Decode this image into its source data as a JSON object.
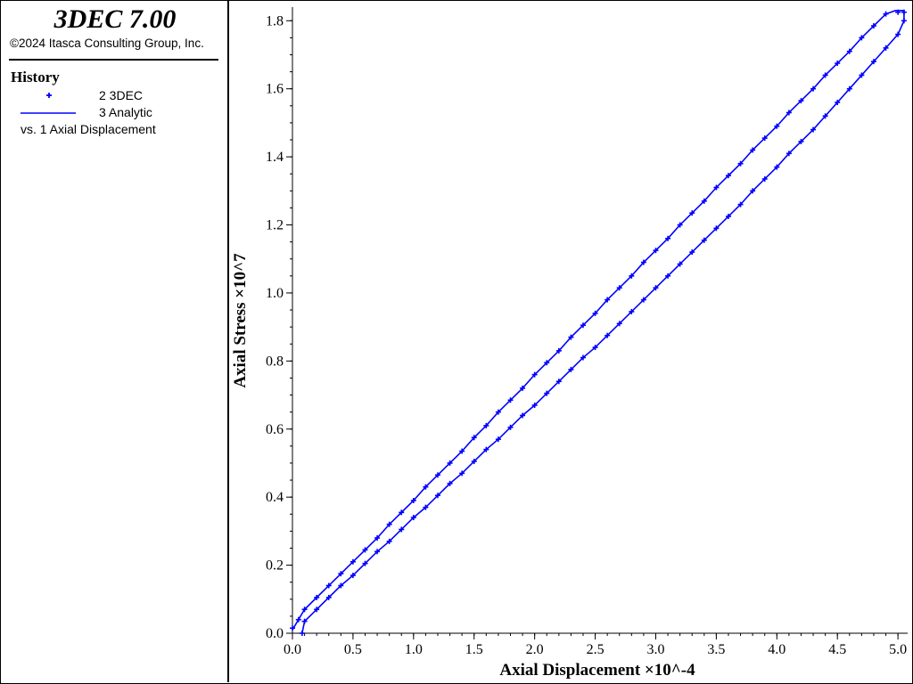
{
  "app": {
    "title": "3DEC 7.00",
    "copyright": "©2024 Itasca Consulting Group, Inc."
  },
  "history": {
    "title": "History",
    "entries": [
      {
        "label": "2 3DEC",
        "symbol": "plus-marker",
        "color": "#0000ff"
      },
      {
        "label": "3 Analytic",
        "symbol": "line",
        "color": "#0000ff"
      }
    ],
    "vs_label": "vs. 1 Axial Displacement"
  },
  "colors": {
    "series": "#0000ff",
    "axis": "#000000",
    "background": "#ffffff"
  },
  "chart_data": {
    "type": "line",
    "title": "",
    "xlabel": "Axial Displacement",
    "xlabel_scale": "×10^-4",
    "ylabel": "Axial Stress",
    "ylabel_scale": "×10^7",
    "xlim": [
      0.0,
      5.08
    ],
    "ylim": [
      0.0,
      1.84
    ],
    "xticks": [
      "0.0",
      "0.5",
      "1.0",
      "1.5",
      "2.0",
      "2.5",
      "3.0",
      "3.5",
      "4.0",
      "4.5",
      "5.0"
    ],
    "yticks": [
      "0.0",
      "0.2",
      "0.4",
      "0.6",
      "0.8",
      "1.0",
      "1.2",
      "1.4",
      "1.6",
      "1.8"
    ],
    "grid": false,
    "legend": "left-panel",
    "series": [
      {
        "name": "2 3DEC",
        "style": "markers",
        "x": [
          0.0,
          0.05,
          0.1,
          0.2,
          0.3,
          0.4,
          0.5,
          0.6,
          0.7,
          0.8,
          0.9,
          1.0,
          1.1,
          1.2,
          1.3,
          1.4,
          1.5,
          1.6,
          1.7,
          1.8,
          1.9,
          2.0,
          2.1,
          2.2,
          2.3,
          2.4,
          2.5,
          2.6,
          2.7,
          2.8,
          2.9,
          3.0,
          3.1,
          3.2,
          3.3,
          3.4,
          3.5,
          3.6,
          3.7,
          3.8,
          3.9,
          4.0,
          4.1,
          4.2,
          4.3,
          4.4,
          4.5,
          4.6,
          4.7,
          4.8,
          4.9,
          5.0,
          5.05,
          5.05,
          5.0,
          4.9,
          4.8,
          4.7,
          4.6,
          4.5,
          4.4,
          4.3,
          4.2,
          4.1,
          4.0,
          3.9,
          3.8,
          3.7,
          3.6,
          3.5,
          3.4,
          3.3,
          3.2,
          3.1,
          3.0,
          2.9,
          2.8,
          2.7,
          2.6,
          2.5,
          2.4,
          2.3,
          2.2,
          2.1,
          2.0,
          1.9,
          1.8,
          1.7,
          1.6,
          1.5,
          1.4,
          1.3,
          1.2,
          1.1,
          1.0,
          0.9,
          0.8,
          0.7,
          0.6,
          0.5,
          0.4,
          0.3,
          0.2,
          0.1,
          0.08
        ],
        "y": [
          0.015,
          0.04,
          0.07,
          0.105,
          0.14,
          0.175,
          0.21,
          0.245,
          0.28,
          0.32,
          0.355,
          0.39,
          0.43,
          0.465,
          0.5,
          0.535,
          0.575,
          0.61,
          0.65,
          0.685,
          0.72,
          0.76,
          0.795,
          0.83,
          0.87,
          0.905,
          0.94,
          0.98,
          1.015,
          1.05,
          1.09,
          1.125,
          1.16,
          1.2,
          1.235,
          1.27,
          1.31,
          1.345,
          1.38,
          1.42,
          1.455,
          1.49,
          1.53,
          1.565,
          1.6,
          1.64,
          1.675,
          1.71,
          1.75,
          1.785,
          1.82,
          1.825,
          1.825,
          1.8,
          1.76,
          1.72,
          1.68,
          1.64,
          1.6,
          1.56,
          1.52,
          1.48,
          1.445,
          1.41,
          1.37,
          1.335,
          1.3,
          1.26,
          1.225,
          1.19,
          1.155,
          1.12,
          1.085,
          1.05,
          1.015,
          0.98,
          0.945,
          0.91,
          0.875,
          0.84,
          0.81,
          0.775,
          0.74,
          0.705,
          0.67,
          0.64,
          0.605,
          0.57,
          0.54,
          0.505,
          0.47,
          0.44,
          0.405,
          0.37,
          0.34,
          0.305,
          0.27,
          0.24,
          0.205,
          0.17,
          0.14,
          0.105,
          0.07,
          0.035,
          0.0
        ]
      },
      {
        "name": "3 Analytic",
        "style": "line",
        "x": [
          0.0,
          0.1,
          0.2,
          0.3,
          0.4,
          0.5,
          0.6,
          0.7,
          0.8,
          0.9,
          1.0,
          1.1,
          1.2,
          1.3,
          1.4,
          1.5,
          1.6,
          1.7,
          1.8,
          1.9,
          2.0,
          2.1,
          2.2,
          2.3,
          2.4,
          2.5,
          2.6,
          2.7,
          2.8,
          2.9,
          3.0,
          3.1,
          3.2,
          3.3,
          3.4,
          3.5,
          3.6,
          3.7,
          3.8,
          3.9,
          4.0,
          4.1,
          4.2,
          4.3,
          4.4,
          4.5,
          4.6,
          4.7,
          4.8,
          4.9,
          4.98,
          5.05,
          5.05,
          5.0,
          4.9,
          4.8,
          4.7,
          4.6,
          4.5,
          4.4,
          4.3,
          4.2,
          4.1,
          4.0,
          3.9,
          3.8,
          3.7,
          3.6,
          3.5,
          3.4,
          3.3,
          3.2,
          3.1,
          3.0,
          2.9,
          2.8,
          2.7,
          2.6,
          2.5,
          2.4,
          2.3,
          2.2,
          2.1,
          2.0,
          1.9,
          1.8,
          1.7,
          1.6,
          1.5,
          1.4,
          1.3,
          1.2,
          1.1,
          1.0,
          0.9,
          0.8,
          0.7,
          0.6,
          0.5,
          0.4,
          0.3,
          0.2,
          0.1,
          0.08
        ],
        "y": [
          0.01,
          0.07,
          0.105,
          0.14,
          0.175,
          0.21,
          0.245,
          0.28,
          0.32,
          0.355,
          0.39,
          0.43,
          0.465,
          0.5,
          0.535,
          0.575,
          0.61,
          0.65,
          0.685,
          0.72,
          0.76,
          0.795,
          0.83,
          0.87,
          0.905,
          0.94,
          0.98,
          1.015,
          1.05,
          1.09,
          1.125,
          1.16,
          1.2,
          1.235,
          1.27,
          1.31,
          1.345,
          1.38,
          1.42,
          1.455,
          1.49,
          1.53,
          1.565,
          1.6,
          1.64,
          1.675,
          1.71,
          1.75,
          1.785,
          1.82,
          1.83,
          1.83,
          1.8,
          1.76,
          1.72,
          1.68,
          1.64,
          1.6,
          1.56,
          1.52,
          1.48,
          1.445,
          1.41,
          1.37,
          1.335,
          1.3,
          1.26,
          1.225,
          1.19,
          1.155,
          1.12,
          1.085,
          1.05,
          1.015,
          0.98,
          0.945,
          0.91,
          0.875,
          0.84,
          0.81,
          0.775,
          0.74,
          0.705,
          0.67,
          0.64,
          0.605,
          0.57,
          0.54,
          0.505,
          0.47,
          0.44,
          0.405,
          0.37,
          0.34,
          0.305,
          0.27,
          0.24,
          0.205,
          0.17,
          0.14,
          0.105,
          0.07,
          0.035,
          0.0
        ]
      }
    ]
  }
}
